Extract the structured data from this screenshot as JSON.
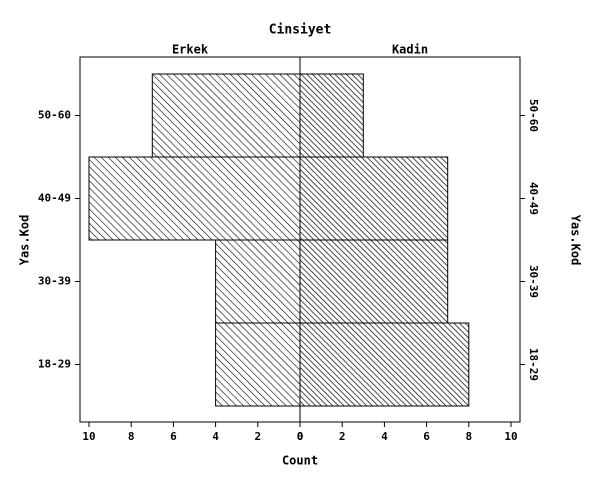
{
  "chart_data": {
    "type": "pyramid",
    "title": "Cinsiyet",
    "categories": [
      "18-29",
      "30-39",
      "40-49",
      "50-60"
    ],
    "series": [
      {
        "name": "Erkek",
        "values": [
          4,
          4,
          10,
          7
        ],
        "xlim": [
          10,
          0
        ],
        "xticks": [
          10,
          8,
          6,
          4,
          2,
          0
        ]
      },
      {
        "name": "Kadin",
        "values": [
          8,
          7,
          7,
          3
        ],
        "xlim": [
          0,
          10
        ],
        "xticks": [
          0,
          2,
          4,
          6,
          8,
          10
        ]
      }
    ],
    "xlabel": "Count",
    "ylabel": "Yas.Kod"
  }
}
